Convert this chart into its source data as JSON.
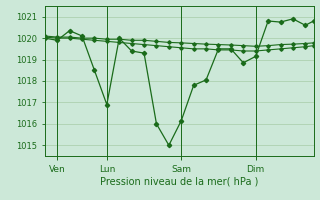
{
  "xlabel": "Pression niveau de la mer( hPa )",
  "bg_color": "#cce8d8",
  "line_color": "#1a6b1a",
  "grid_color": "#a8cca8",
  "text_color": "#1a6b1a",
  "ylim": [
    1014.5,
    1021.5
  ],
  "yticks": [
    1015,
    1016,
    1017,
    1018,
    1019,
    1020,
    1021
  ],
  "xtick_labels": [
    "Ven",
    "Lun",
    "Sam",
    "Dim"
  ],
  "xtick_positions": [
    12,
    60,
    132,
    204
  ],
  "xmax": 260,
  "line1_x": [
    0,
    12,
    24,
    36,
    48,
    60,
    72,
    84,
    96,
    108,
    120,
    132,
    144,
    156,
    168,
    180,
    192,
    204,
    216,
    228,
    240,
    252,
    260
  ],
  "line1_y": [
    1020.0,
    1019.9,
    1020.35,
    1020.1,
    1018.5,
    1016.9,
    1020.0,
    1019.4,
    1019.3,
    1016.0,
    1015.0,
    1016.15,
    1017.8,
    1018.05,
    1019.5,
    1019.5,
    1018.85,
    1019.15,
    1020.8,
    1020.75,
    1020.9,
    1020.6,
    1020.8
  ],
  "line2_x": [
    0,
    12,
    24,
    36,
    48,
    60,
    72,
    84,
    96,
    108,
    120,
    132,
    144,
    156,
    168,
    180,
    192,
    204,
    216,
    228,
    240,
    252,
    260
  ],
  "line2_y": [
    1020.05,
    1020.0,
    1020.0,
    1019.95,
    1019.9,
    1019.85,
    1019.8,
    1019.75,
    1019.7,
    1019.65,
    1019.6,
    1019.55,
    1019.5,
    1019.5,
    1019.45,
    1019.45,
    1019.4,
    1019.4,
    1019.45,
    1019.5,
    1019.55,
    1019.6,
    1019.65
  ],
  "line3_x": [
    0,
    12,
    24,
    36,
    48,
    60,
    72,
    84,
    96,
    108,
    120,
    132,
    144,
    156,
    168,
    180,
    192,
    204,
    216,
    228,
    240,
    252,
    260
  ],
  "line3_y": [
    1020.1,
    1020.05,
    1020.05,
    1020.0,
    1020.0,
    1019.95,
    1019.95,
    1019.9,
    1019.9,
    1019.85,
    1019.8,
    1019.78,
    1019.75,
    1019.72,
    1019.7,
    1019.68,
    1019.65,
    1019.62,
    1019.65,
    1019.7,
    1019.72,
    1019.75,
    1019.78
  ]
}
